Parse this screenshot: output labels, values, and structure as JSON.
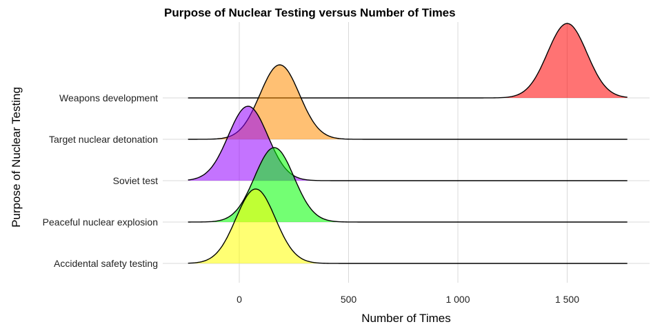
{
  "chart_data": {
    "type": "ridgeline",
    "title": "Purpose of Nuclear Testing versus Number of Times",
    "xlabel": "Number of Times",
    "ylabel": "Purpose of Nuclear Testing",
    "x_ticks": [
      0,
      500,
      1000,
      1500
    ],
    "x_tick_labels": [
      "0",
      "500",
      "1 000",
      "1 500"
    ],
    "xlim": [
      -250,
      1775
    ],
    "grid": true,
    "legend": "none",
    "categories": [
      "Accidental safety testing",
      "Peaceful nuclear explosion",
      "Soviet test",
      "Target nuclear detonation",
      "Weapons development"
    ],
    "series": [
      {
        "name": "Accidental safety testing",
        "peak_x": 75,
        "sd": 90,
        "relative_height": 1.8,
        "color": "#ffff00"
      },
      {
        "name": "Peaceful nuclear explosion",
        "peak_x": 160,
        "sd": 90,
        "relative_height": 1.8,
        "color": "#00ff00"
      },
      {
        "name": "Soviet test",
        "peak_x": 40,
        "sd": 90,
        "relative_height": 1.8,
        "color": "#9400ff"
      },
      {
        "name": "Target nuclear detonation",
        "peak_x": 185,
        "sd": 90,
        "relative_height": 1.8,
        "color": "#ff8c00"
      },
      {
        "name": "Weapons development",
        "peak_x": 1500,
        "sd": 90,
        "relative_height": 1.8,
        "color": "#ff0000"
      }
    ]
  }
}
